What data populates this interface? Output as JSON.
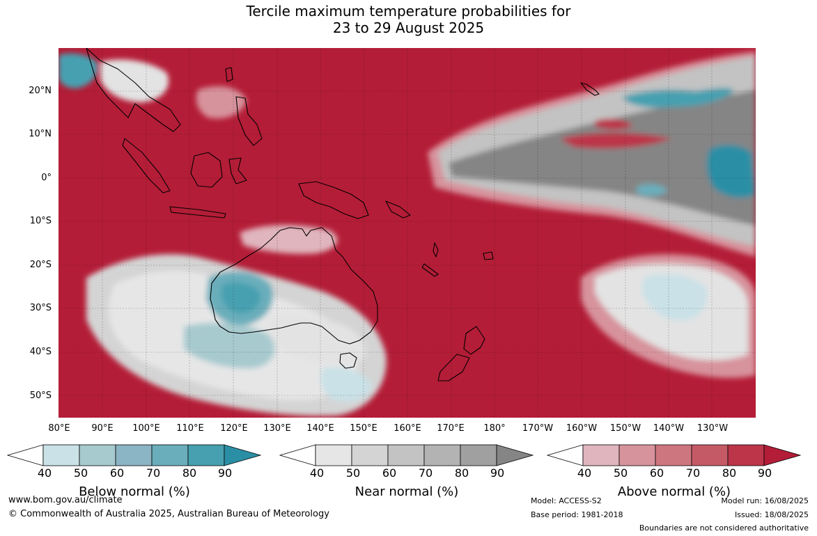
{
  "title": {
    "line1": "Tercile maximum temperature probabilities for",
    "line2": "23 to 29 August 2025"
  },
  "map": {
    "latitude_labels": [
      "20°N",
      "10°N",
      "0°",
      "10°S",
      "20°S",
      "30°S",
      "40°S",
      "50°S"
    ],
    "longitude_labels": [
      "80°E",
      "90°E",
      "100°E",
      "110°E",
      "120°E",
      "130°E",
      "140°E",
      "150°E",
      "160°E",
      "170°E",
      "180°",
      "170°W",
      "160°W",
      "150°W",
      "140°W",
      "130°W"
    ],
    "colors": {
      "above_90": "#b41d37",
      "near_high": "#858585",
      "below_high": "#2a8fa5",
      "light_near": "#e3e3e3",
      "land_outline": "#000000"
    }
  },
  "colorbars": [
    {
      "id": "below",
      "title": "Below normal (%)",
      "ticks": [
        "40",
        "50",
        "60",
        "70",
        "80",
        "90"
      ],
      "colors": [
        "#ffffff",
        "#c9e1e7",
        "#a7cacf",
        "#8bb4c4",
        "#6aaebb",
        "#46a0b0",
        "#2a8fa5"
      ]
    },
    {
      "id": "near",
      "title": "Near normal (%)",
      "ticks": [
        "40",
        "50",
        "60",
        "70",
        "80",
        "90"
      ],
      "colors": [
        "#ffffff",
        "#e6e6e6",
        "#d4d4d4",
        "#c3c3c3",
        "#b3b3b3",
        "#a0a0a0",
        "#858585"
      ]
    },
    {
      "id": "above",
      "title": "Above normal (%)",
      "ticks": [
        "40",
        "50",
        "60",
        "70",
        "80",
        "90"
      ],
      "colors": [
        "#ffffff",
        "#e0b5bd",
        "#d7939c",
        "#cd7680",
        "#c45a65",
        "#bc3549",
        "#b41d37"
      ]
    }
  ],
  "footer": {
    "website": "www.bom.gov.au/climate",
    "copyright": "© Commonwealth of Australia 2025, Australian Bureau of Meteorology",
    "model": "Model: ACCESS-S2",
    "base_period": "Base period: 1981-2018",
    "model_run": "Model run: 16/08/2025",
    "issued": "Issued: 18/08/2025",
    "boundaries_note": "Boundaries are not considered authoritative"
  }
}
